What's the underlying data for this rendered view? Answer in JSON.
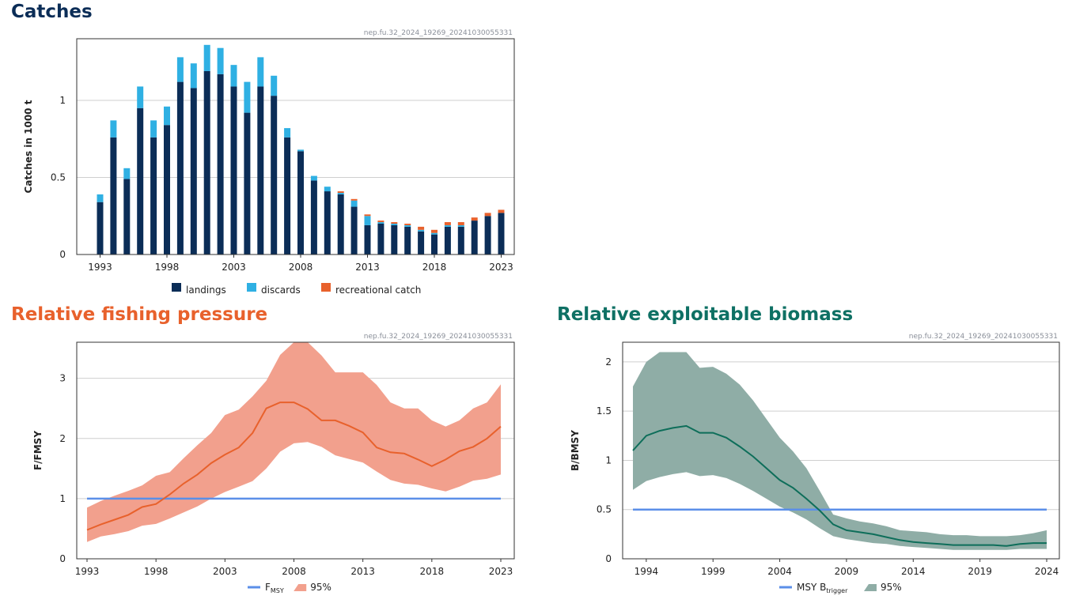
{
  "sections": {
    "catches": {
      "title": "Catches",
      "watermark": "nep.fu.32_2024_19269_20241030055331"
    },
    "fishing": {
      "title": "Relative fishing pressure",
      "watermark": "nep.fu.32_2024_19269_20241030055331"
    },
    "biomass": {
      "title": "Relative exploitable biomass",
      "watermark": "nep.fu.32_2024_19269_20241030055331"
    }
  },
  "colors": {
    "landings": "#0b2d57",
    "discards": "#2fb0e3",
    "recreational": "#e8612c",
    "fishing_line": "#e8612c",
    "fishing_band": "#f2a08d",
    "biomass_line": "#0e6e5a",
    "biomass_band": "#8fada6",
    "reference": "#5b8fe8"
  },
  "chart_data": [
    {
      "id": "catches",
      "type": "bar",
      "stacked": true,
      "ylabel": "Catches in 1000 t",
      "ylim": [
        0,
        1.4
      ],
      "yticks": [
        0,
        0.5,
        1
      ],
      "ytick_labels": [
        "0",
        "0.5",
        "1"
      ],
      "xticks": [
        1993,
        1998,
        2003,
        2008,
        2013,
        2018,
        2023
      ],
      "categories": [
        1993,
        1994,
        1995,
        1996,
        1997,
        1998,
        1999,
        2000,
        2001,
        2002,
        2003,
        2004,
        2005,
        2006,
        2007,
        2008,
        2009,
        2010,
        2011,
        2012,
        2013,
        2014,
        2015,
        2016,
        2017,
        2018,
        2019,
        2020,
        2021,
        2022,
        2023
      ],
      "series": [
        {
          "name": "landings",
          "values": [
            0.34,
            0.76,
            0.49,
            0.95,
            0.76,
            0.84,
            1.12,
            1.08,
            1.19,
            1.17,
            1.09,
            0.92,
            1.09,
            1.03,
            0.76,
            0.67,
            0.48,
            0.41,
            0.39,
            0.31,
            0.19,
            0.2,
            0.19,
            0.18,
            0.15,
            0.13,
            0.18,
            0.18,
            0.22,
            0.25,
            0.27
          ]
        },
        {
          "name": "discards",
          "values": [
            0.05,
            0.11,
            0.07,
            0.14,
            0.11,
            0.12,
            0.16,
            0.16,
            0.17,
            0.17,
            0.14,
            0.2,
            0.19,
            0.13,
            0.06,
            0.01,
            0.03,
            0.03,
            0.01,
            0.04,
            0.06,
            0.01,
            0.01,
            0.01,
            0.01,
            0.01,
            0.01,
            0.01,
            0.0,
            0.0,
            0.0
          ]
        },
        {
          "name": "recreational catch",
          "values": [
            0,
            0,
            0,
            0,
            0,
            0,
            0,
            0,
            0,
            0,
            0,
            0,
            0,
            0,
            0,
            0,
            0,
            0,
            0.01,
            0.01,
            0.01,
            0.01,
            0.01,
            0.01,
            0.02,
            0.02,
            0.02,
            0.02,
            0.02,
            0.02,
            0.02
          ]
        }
      ],
      "legend": [
        {
          "label": "landings",
          "color": "#0b2d57"
        },
        {
          "label": "discards",
          "color": "#2fb0e3"
        },
        {
          "label": "recreational catch",
          "color": "#e8612c"
        }
      ]
    },
    {
      "id": "fishing",
      "type": "line",
      "ylabel": "F/FMSY",
      "ylim": [
        0,
        3.6
      ],
      "yticks": [
        0,
        1,
        2,
        3
      ],
      "ytick_labels": [
        "0",
        "1",
        "2",
        "3"
      ],
      "xlim": [
        1993,
        2023
      ],
      "xticks": [
        1993,
        1998,
        2003,
        2008,
        2013,
        2018,
        2023
      ],
      "x": [
        1993,
        1994,
        1995,
        1996,
        1997,
        1998,
        1999,
        2000,
        2001,
        2002,
        2003,
        2004,
        2005,
        2006,
        2007,
        2008,
        2009,
        2010,
        2011,
        2012,
        2013,
        2014,
        2015,
        2016,
        2017,
        2018,
        2019,
        2020,
        2021,
        2022,
        2023
      ],
      "series": [
        {
          "values": [
            0.48,
            0.57,
            0.65,
            0.73,
            0.86,
            0.91,
            1.07,
            1.25,
            1.4,
            1.59,
            1.73,
            1.85,
            2.09,
            2.5,
            2.6,
            2.6,
            2.49,
            2.3,
            2.3,
            2.21,
            2.1,
            1.85,
            1.77,
            1.75,
            1.65,
            1.54,
            1.65,
            1.79,
            1.86,
            2.0,
            2.2
          ]
        }
      ],
      "band": {
        "lower": [
          0.28,
          0.37,
          0.41,
          0.46,
          0.55,
          0.58,
          0.67,
          0.77,
          0.87,
          1.0,
          1.11,
          1.2,
          1.29,
          1.5,
          1.78,
          1.92,
          1.94,
          1.86,
          1.72,
          1.66,
          1.6,
          1.45,
          1.31,
          1.25,
          1.23,
          1.17,
          1.12,
          1.2,
          1.3,
          1.33,
          1.4
        ],
        "upper": [
          0.85,
          0.96,
          1.05,
          1.13,
          1.22,
          1.38,
          1.44,
          1.67,
          1.89,
          2.09,
          2.39,
          2.48,
          2.7,
          2.96,
          3.39,
          3.6,
          3.6,
          3.38,
          3.1,
          3.1,
          3.1,
          2.89,
          2.6,
          2.5,
          2.5,
          2.3,
          2.2,
          2.3,
          2.5,
          2.6,
          2.9
        ]
      },
      "reference": 1,
      "legend": [
        {
          "label": "F",
          "sub": "MSY",
          "kind": "line",
          "color": "#5b8fe8"
        },
        {
          "label": "95%",
          "kind": "band",
          "color": "#f2a08d"
        }
      ]
    },
    {
      "id": "biomass",
      "type": "line",
      "ylabel": "B/BMSY",
      "ylim": [
        0,
        2.2
      ],
      "yticks": [
        0,
        0.5,
        1,
        1.5,
        2
      ],
      "ytick_labels": [
        "0",
        "0.5",
        "1",
        "1.5",
        "2"
      ],
      "xlim": [
        1993,
        2024
      ],
      "xticks": [
        1994,
        1999,
        2004,
        2009,
        2014,
        2019,
        2024
      ],
      "x": [
        1993,
        1994,
        1995,
        1996,
        1997,
        1998,
        1999,
        2000,
        2001,
        2002,
        2003,
        2004,
        2005,
        2006,
        2007,
        2008,
        2009,
        2010,
        2011,
        2012,
        2013,
        2014,
        2015,
        2016,
        2017,
        2018,
        2019,
        2020,
        2021,
        2022,
        2023,
        2024
      ],
      "series": [
        {
          "values": [
            1.1,
            1.25,
            1.3,
            1.33,
            1.35,
            1.28,
            1.28,
            1.23,
            1.14,
            1.04,
            0.92,
            0.8,
            0.72,
            0.61,
            0.49,
            0.35,
            0.29,
            0.27,
            0.25,
            0.22,
            0.19,
            0.17,
            0.16,
            0.15,
            0.14,
            0.14,
            0.14,
            0.14,
            0.13,
            0.15,
            0.16,
            0.16
          ]
        }
      ],
      "band": {
        "lower": [
          0.7,
          0.79,
          0.83,
          0.86,
          0.88,
          0.84,
          0.85,
          0.82,
          0.76,
          0.69,
          0.61,
          0.53,
          0.47,
          0.4,
          0.31,
          0.23,
          0.2,
          0.18,
          0.16,
          0.15,
          0.13,
          0.12,
          0.11,
          0.1,
          0.09,
          0.09,
          0.09,
          0.09,
          0.09,
          0.1,
          0.1,
          0.1
        ],
        "upper": [
          1.75,
          2.0,
          2.1,
          2.1,
          2.1,
          1.94,
          1.95,
          1.88,
          1.77,
          1.61,
          1.42,
          1.23,
          1.09,
          0.92,
          0.69,
          0.45,
          0.41,
          0.38,
          0.36,
          0.33,
          0.29,
          0.28,
          0.27,
          0.25,
          0.24,
          0.24,
          0.23,
          0.23,
          0.23,
          0.24,
          0.26,
          0.29
        ]
      },
      "reference": 0.5,
      "legend": [
        {
          "label": "MSY B",
          "sub": "trigger",
          "kind": "line",
          "color": "#5b8fe8"
        },
        {
          "label": "95%",
          "kind": "band",
          "color": "#8fada6"
        }
      ]
    }
  ]
}
